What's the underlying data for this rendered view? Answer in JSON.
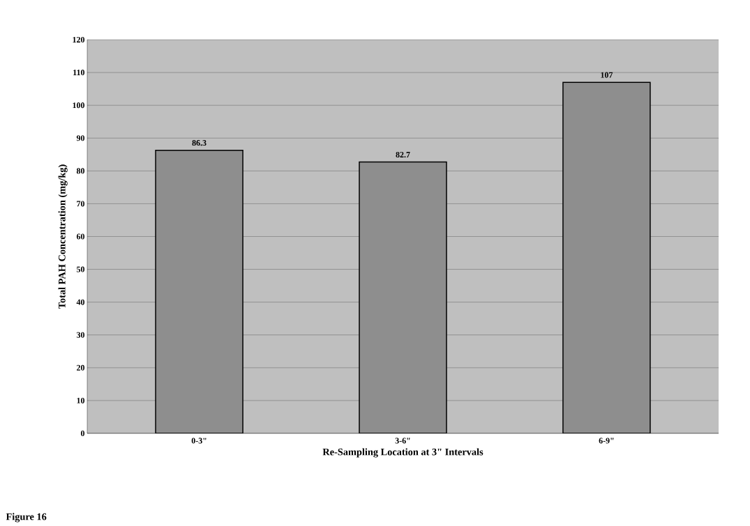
{
  "chart_data": {
    "type": "bar",
    "xlabel": "Re-Sampling Location at 3\" Intervals",
    "ylabel": "Total PAH Concentration (mg/kg)",
    "categories": [
      "0-3\"",
      "3-6\"",
      "6-9\""
    ],
    "values": [
      86.3,
      82.7,
      107
    ],
    "color": "#8e8e8e",
    "data_labels": true,
    "ylim": [
      0,
      120
    ],
    "yticks": [
      0,
      10,
      20,
      30,
      40,
      50,
      60,
      70,
      80,
      90,
      100,
      110,
      120
    ],
    "grid": "y",
    "annotations": [
      "Figure 16"
    ]
  }
}
